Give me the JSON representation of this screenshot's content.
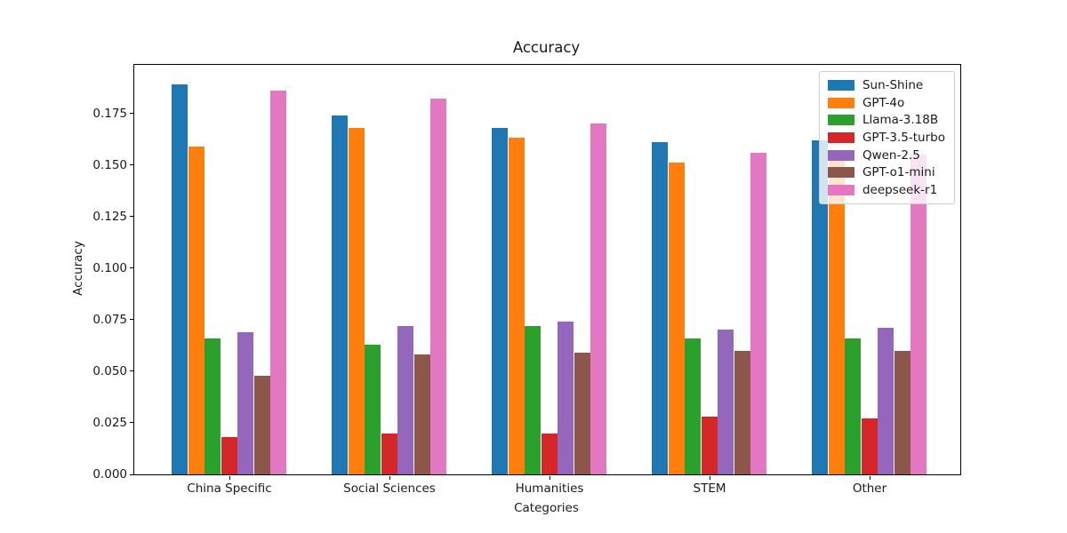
{
  "chart_data": {
    "type": "bar",
    "title": "Accuracy",
    "xlabel": "Categories",
    "ylabel": "Accuracy",
    "categories": [
      "China Specific",
      "Social Sciences",
      "Humanities",
      "STEM",
      "Other"
    ],
    "series": [
      {
        "name": "Sun-Shine",
        "color": "#1f77b4",
        "values": [
          0.189,
          0.174,
          0.168,
          0.161,
          0.162
        ]
      },
      {
        "name": "GPT-4o",
        "color": "#ff7f0e",
        "values": [
          0.159,
          0.168,
          0.163,
          0.151,
          0.153
        ]
      },
      {
        "name": "Llama-3.18B",
        "color": "#2ca02c",
        "values": [
          0.066,
          0.063,
          0.072,
          0.066,
          0.066
        ]
      },
      {
        "name": "GPT-3.5-turbo",
        "color": "#d62728",
        "values": [
          0.018,
          0.02,
          0.02,
          0.028,
          0.027
        ]
      },
      {
        "name": "Qwen-2.5",
        "color": "#9467bd",
        "values": [
          0.069,
          0.072,
          0.074,
          0.07,
          0.071
        ]
      },
      {
        "name": "GPT-o1-mini",
        "color": "#8c564b",
        "values": [
          0.048,
          0.058,
          0.059,
          0.06,
          0.06
        ]
      },
      {
        "name": "deepseek-r1",
        "color": "#e377c2",
        "values": [
          0.186,
          0.182,
          0.17,
          0.156,
          0.155
        ]
      }
    ],
    "ytick_labels": [
      "0.000",
      "0.025",
      "0.050",
      "0.075",
      "0.100",
      "0.125",
      "0.150",
      "0.175"
    ],
    "yticks": [
      0.0,
      0.025,
      0.05,
      0.075,
      0.1,
      0.125,
      0.15,
      0.175
    ],
    "ylim": [
      0,
      0.1985
    ],
    "legend_position": "upper right",
    "grid": false,
    "background": "#ffffff",
    "axis_color": "#000000"
  }
}
